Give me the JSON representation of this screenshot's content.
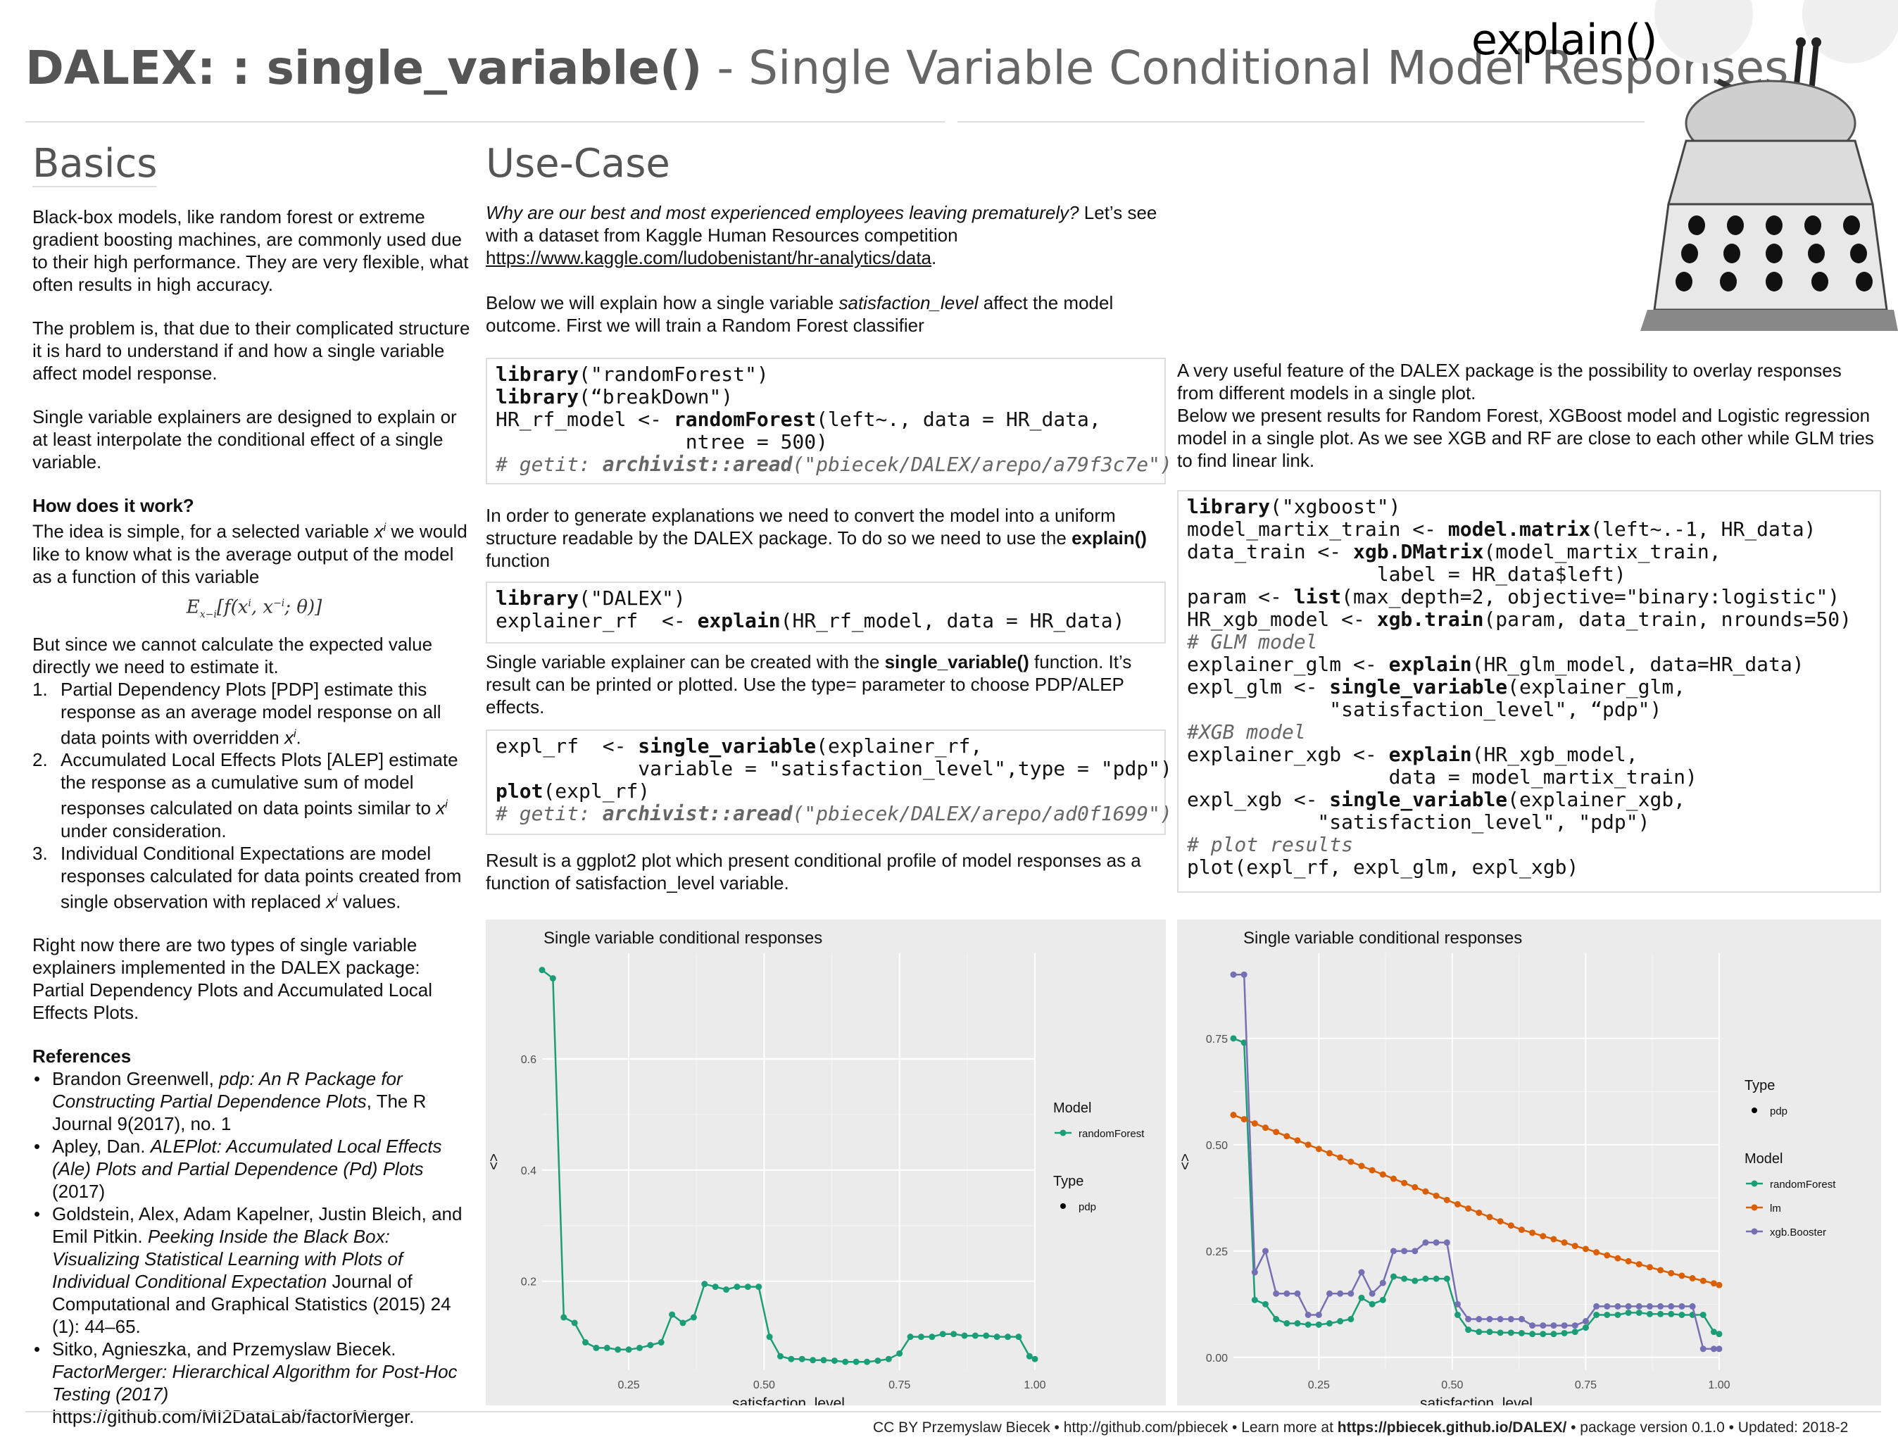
{
  "header": {
    "title_bold": "DALEX: : single_variable()",
    "title_sep": " - ",
    "title_rest": "Single Variable Conditional Model Responses",
    "explain_label": "explain()"
  },
  "basics": {
    "heading": "Basics",
    "p1": "Black-box models, like random forest or extreme gradient boosting machines, are commonly used due to their high performance. They are very flexible, what often results in high accuracy.",
    "p2": "The problem is, that due to their complicated structure it is hard to understand if and how a single variable affect model response.",
    "p3": "Single variable explainers are designed to explain or at least interpolate the conditional effect of a single variable.",
    "how_heading": "How does it work?",
    "how_text_a": "The idea is simple, for a selected variable ",
    "how_text_var": "x",
    "how_text_sup": "i",
    "how_text_b": " we would like to know what is the average output of the model as a function of this variable",
    "formula": "E",
    "formula_sub": "x−i",
    "formula_rest": "[f(x",
    "formula_sup1": "i",
    "formula_mid": ", x",
    "formula_sup2": "−i",
    "formula_end": "; θ)]",
    "but_text": "But since we cannot calculate the expected value directly we need to estimate it.",
    "steps": [
      {
        "num": "1.",
        "text": "Partial Dependency Plots [PDP] estimate this response as an average model response on all data points with overridden ",
        "var": "x",
        "sup": "i",
        "end": "."
      },
      {
        "num": "2.",
        "text": "Accumulated Local Effects Plots [ALEP] estimate the response as a cumulative sum of model responses calculated on data points similar to ",
        "var": "x",
        "sup": "i",
        "end": " under consideration."
      },
      {
        "num": "3.",
        "text": "Individual Conditional Expectations are model responses calculated for data points created from single observation with replaced ",
        "var": "x",
        "sup": "i",
        "end": "  values."
      }
    ],
    "p4": "Right now there are two types of single variable explainers implemented in the DALEX package: Partial Dependency Plots and Accumulated Local Effects Plots.",
    "refs_heading": "References",
    "refs": [
      {
        "a": "Brandon Greenwell, ",
        "i": "pdp:  An R Package for Constructing Partial Dependence Plots",
        "b": ", The R Journal 9(2017), no. 1"
      },
      {
        "a": "Apley, Dan. ",
        "i": "ALEPlot: Accumulated Local Effects (Ale) Plots and Partial Dependence (Pd) Plots",
        "b": " (2017)"
      },
      {
        "a": "Goldstein, Alex, Adam Kapelner, Justin Bleich, and Emil Pitkin. ",
        "i": "Peeking Inside the Black Box: Visualizing Statistical Learning with Plots of Individual Conditional Expectation",
        "b": " Journal of Computational and Graphical Statistics (2015) 24 (1): 44–65."
      },
      {
        "a": "Sitko, Agnieszka, and Przemyslaw Biecek. ",
        "i": "FactorMerger: Hierarchical Algorithm for Post-Hoc Testing (2017)",
        "b": " https://github.com/MI2DataLab/factorMerger."
      }
    ]
  },
  "usecase": {
    "heading": "Use-Case",
    "intro_italic": "Why are our best and most experienced employees leaving prematurely?",
    "intro_rest": " Let’s see with a dataset from Kaggle Human Resources competition ",
    "intro_link": "https://www.kaggle.com/ludobenistant/hr-analytics/data",
    "intro_end": ".",
    "p2_a": "Below we will explain how a single variable ",
    "p2_var": "satisfaction_level",
    "p2_b": " affect the model outcome. First we will train a Random Forest classifier",
    "code1": {
      "l1_fn": "library",
      "l1_rest": "(\"randomForest\")",
      "l2_fn": "library",
      "l2_rest": "(“breakDown\")",
      "l3_a": "HR_rf_model <- ",
      "l3_fn": "randomForest",
      "l3_rest": "(left~., data = HR_data,",
      "l4": "                ntree = 500)",
      "l5_a": "# getit: ",
      "l5_fn": "archivist::aread",
      "l5_rest": "(\"pbiecek/DALEX/arepo/a79f3c7e\")"
    },
    "p3_a": "In order to generate explanations we need to convert the model into a uniform structure readable by the DALEX package. To do so we need to use the ",
    "p3_b": "explain()",
    "p3_c": " function",
    "code2": {
      "l1_fn": "library",
      "l1_rest": "(\"DALEX\")",
      "l2_a": "explainer_rf  <- ",
      "l2_fn": "explain",
      "l2_rest": "(HR_rf_model, data = HR_data)"
    },
    "p4_a": "Single variable explainer can be created with the ",
    "p4_b": "single_variable()",
    "p4_c": " function. It’s result can be printed or plotted. Use the type= parameter to choose PDP/ALEP effects.",
    "code3": {
      "l1_a": "expl_rf  <- ",
      "l1_fn": "single_variable",
      "l1_rest": "(explainer_rf,",
      "l2": "            variable = \"satisfaction_level\",type = \"pdp\")",
      "l3_fn": "plot",
      "l3_rest": "(expl_rf)",
      "l4_a": "# getit: ",
      "l4_fn": "archivist::aread",
      "l4_rest": "(\"pbiecek/DALEX/arepo/ad0f1699\")"
    },
    "p5": "Result is a ggplot2 plot which present conditional profile of model responses as a function of satisfaction_level variable."
  },
  "right": {
    "p1": "A very useful feature of the DALEX package is the possibility to overlay responses from different models in a single plot.",
    "p2": "Below we present results for Random Forest, XGBoost model and Logistic regression model in a single plot. As we see XGB and RF are close to each other while GLM tries to find linear link.",
    "code": {
      "l1_fn": "library",
      "l1_rest": "(\"xgboost\")",
      "l2_a": "model_martix_train <- ",
      "l2_fn": "model.matrix",
      "l2_rest": "(left~.-1, HR_data)",
      "l3_a": "data_train <- ",
      "l3_fn": "xgb.DMatrix",
      "l3_rest": "(model_martix_train,",
      "l4": "                label = HR_data$left)",
      "l5_a": "param <- ",
      "l5_fn": "list",
      "l5_rest": "(max_depth=2, objective=\"binary:logistic\")",
      "l6_a": "HR_xgb_model <- ",
      "l6_fn": "xgb.train",
      "l6_rest": "(param, data_train, nrounds=50)",
      "l7": "# GLM model",
      "l8_a": "explainer_glm <- ",
      "l8_fn": "explain",
      "l8_rest": "(HR_glm_model, data=HR_data)",
      "l9_a": "expl_glm <- ",
      "l9_fn": "single_variable",
      "l9_rest": "(explainer_glm,",
      "l10": "            \"satisfaction_level\", “pdp\")",
      "l11": "#XGB model",
      "l12_a": "explainer_xgb <- ",
      "l12_fn": "explain",
      "l12_rest": "(HR_xgb_model,",
      "l13": "                 data = model_martix_train)",
      "l14_a": "expl_xgb <- ",
      "l14_fn": "single_variable",
      "l14_rest": "(explainer_xgb,",
      "l15": "           \"satisfaction_level\", \"pdp\")",
      "l16": "# plot results",
      "l17": "plot(expl_rf, expl_glm, expl_xgb)"
    }
  },
  "footer": {
    "a": "CC BY Przemyslaw Biecek  •  http://github.com/pbiecek •  Learn more at  ",
    "b": "https://pbiecek.github.io/DALEX/",
    "c": "  •  package version  0.1.0 •  Updated: 2018-2"
  },
  "colors": {
    "rf": "#1b9e77",
    "lm": "#d95f02",
    "xgb": "#7570b3",
    "panel": "#ebebeb"
  },
  "chart_data": [
    {
      "type": "line",
      "title": "Single variable conditional responses",
      "xlabel": "satisfaction_level",
      "ylabel": "<>",
      "xlim": [
        0.09,
        1.0
      ],
      "ylim": [
        0.04,
        0.79
      ],
      "xticks": [
        0.25,
        0.5,
        0.75,
        1.0
      ],
      "xtick_labels": [
        "0.25",
        "0.50",
        "0.75",
        "1.00"
      ],
      "yticks": [
        0.2,
        0.4,
        0.6
      ],
      "ytick_labels": [
        "0.2",
        "0.4",
        "0.6"
      ],
      "legend": {
        "model_title": "Model",
        "model_entries": [
          "randomForest"
        ],
        "type_title": "Type",
        "type_entries": [
          "pdp"
        ]
      },
      "series": [
        {
          "name": "randomForest",
          "color": "#1b9e77",
          "x": [
            0.09,
            0.11,
            0.13,
            0.15,
            0.17,
            0.19,
            0.21,
            0.23,
            0.25,
            0.27,
            0.29,
            0.31,
            0.33,
            0.35,
            0.37,
            0.39,
            0.41,
            0.43,
            0.45,
            0.47,
            0.49,
            0.51,
            0.53,
            0.55,
            0.57,
            0.59,
            0.61,
            0.63,
            0.65,
            0.67,
            0.69,
            0.71,
            0.73,
            0.75,
            0.77,
            0.79,
            0.81,
            0.83,
            0.85,
            0.87,
            0.89,
            0.91,
            0.93,
            0.95,
            0.97,
            0.99,
            1.0
          ],
          "y": [
            0.76,
            0.745,
            0.135,
            0.125,
            0.09,
            0.08,
            0.08,
            0.077,
            0.077,
            0.08,
            0.085,
            0.09,
            0.14,
            0.125,
            0.135,
            0.195,
            0.19,
            0.185,
            0.19,
            0.19,
            0.19,
            0.1,
            0.065,
            0.06,
            0.06,
            0.058,
            0.058,
            0.057,
            0.055,
            0.055,
            0.055,
            0.057,
            0.06,
            0.07,
            0.1,
            0.1,
            0.1,
            0.105,
            0.105,
            0.102,
            0.102,
            0.102,
            0.1,
            0.1,
            0.1,
            0.065,
            0.06
          ]
        }
      ]
    },
    {
      "type": "line",
      "title": "Single variable conditional responses",
      "xlabel": "satisfaction_level",
      "ylabel": "<>",
      "xlim": [
        0.09,
        1.0
      ],
      "ylim": [
        -0.03,
        0.95
      ],
      "xticks": [
        0.25,
        0.5,
        0.75,
        1.0
      ],
      "xtick_labels": [
        "0.25",
        "0.50",
        "0.75",
        "1.00"
      ],
      "yticks": [
        0.0,
        0.25,
        0.5,
        0.75
      ],
      "ytick_labels": [
        "0.00",
        "0.25",
        "0.50",
        "0.75"
      ],
      "legend": {
        "type_title": "Type",
        "type_entries": [
          "pdp"
        ],
        "model_title": "Model",
        "model_entries": [
          "randomForest",
          "lm",
          "xgb.Booster"
        ]
      },
      "series": [
        {
          "name": "randomForest",
          "color": "#1b9e77",
          "x": [
            0.09,
            0.11,
            0.13,
            0.15,
            0.17,
            0.19,
            0.21,
            0.23,
            0.25,
            0.27,
            0.29,
            0.31,
            0.33,
            0.35,
            0.37,
            0.39,
            0.41,
            0.43,
            0.45,
            0.47,
            0.49,
            0.51,
            0.53,
            0.55,
            0.57,
            0.59,
            0.61,
            0.63,
            0.65,
            0.67,
            0.69,
            0.71,
            0.73,
            0.75,
            0.77,
            0.79,
            0.81,
            0.83,
            0.85,
            0.87,
            0.89,
            0.91,
            0.93,
            0.95,
            0.97,
            0.99,
            1.0
          ],
          "y": [
            0.75,
            0.74,
            0.135,
            0.125,
            0.09,
            0.08,
            0.08,
            0.077,
            0.077,
            0.08,
            0.085,
            0.09,
            0.14,
            0.125,
            0.135,
            0.19,
            0.185,
            0.18,
            0.185,
            0.185,
            0.185,
            0.1,
            0.065,
            0.06,
            0.06,
            0.058,
            0.058,
            0.057,
            0.055,
            0.055,
            0.055,
            0.057,
            0.06,
            0.07,
            0.1,
            0.1,
            0.1,
            0.105,
            0.105,
            0.102,
            0.102,
            0.102,
            0.1,
            0.1,
            0.1,
            0.06,
            0.055
          ]
        },
        {
          "name": "lm",
          "color": "#d95f02",
          "x": [
            0.09,
            0.11,
            0.13,
            0.15,
            0.17,
            0.19,
            0.21,
            0.23,
            0.25,
            0.27,
            0.29,
            0.31,
            0.33,
            0.35,
            0.37,
            0.39,
            0.41,
            0.43,
            0.45,
            0.47,
            0.49,
            0.51,
            0.53,
            0.55,
            0.57,
            0.59,
            0.61,
            0.63,
            0.65,
            0.67,
            0.69,
            0.71,
            0.73,
            0.75,
            0.77,
            0.79,
            0.81,
            0.83,
            0.85,
            0.87,
            0.89,
            0.91,
            0.93,
            0.95,
            0.97,
            0.99,
            1.0
          ],
          "y": [
            0.57,
            0.56,
            0.55,
            0.54,
            0.53,
            0.52,
            0.51,
            0.5,
            0.49,
            0.48,
            0.47,
            0.46,
            0.45,
            0.44,
            0.43,
            0.42,
            0.41,
            0.4,
            0.39,
            0.38,
            0.37,
            0.36,
            0.35,
            0.34,
            0.33,
            0.32,
            0.31,
            0.3,
            0.293,
            0.285,
            0.278,
            0.27,
            0.262,
            0.255,
            0.247,
            0.24,
            0.233,
            0.226,
            0.219,
            0.212,
            0.205,
            0.198,
            0.192,
            0.186,
            0.18,
            0.174,
            0.17
          ]
        },
        {
          "name": "xgb.Booster",
          "color": "#7570b3",
          "x": [
            0.09,
            0.11,
            0.13,
            0.15,
            0.17,
            0.19,
            0.21,
            0.23,
            0.25,
            0.27,
            0.29,
            0.31,
            0.33,
            0.35,
            0.37,
            0.39,
            0.41,
            0.43,
            0.45,
            0.47,
            0.49,
            0.51,
            0.53,
            0.55,
            0.57,
            0.59,
            0.61,
            0.63,
            0.65,
            0.67,
            0.69,
            0.71,
            0.73,
            0.75,
            0.77,
            0.79,
            0.81,
            0.83,
            0.85,
            0.87,
            0.89,
            0.91,
            0.93,
            0.95,
            0.97,
            0.99,
            1.0
          ],
          "y": [
            0.9,
            0.9,
            0.2,
            0.25,
            0.15,
            0.15,
            0.15,
            0.1,
            0.1,
            0.15,
            0.15,
            0.15,
            0.2,
            0.15,
            0.175,
            0.25,
            0.25,
            0.25,
            0.27,
            0.27,
            0.27,
            0.125,
            0.09,
            0.09,
            0.09,
            0.09,
            0.09,
            0.09,
            0.075,
            0.075,
            0.075,
            0.075,
            0.075,
            0.085,
            0.12,
            0.12,
            0.12,
            0.12,
            0.12,
            0.12,
            0.12,
            0.12,
            0.12,
            0.12,
            0.02,
            0.02,
            0.02
          ]
        }
      ]
    }
  ]
}
